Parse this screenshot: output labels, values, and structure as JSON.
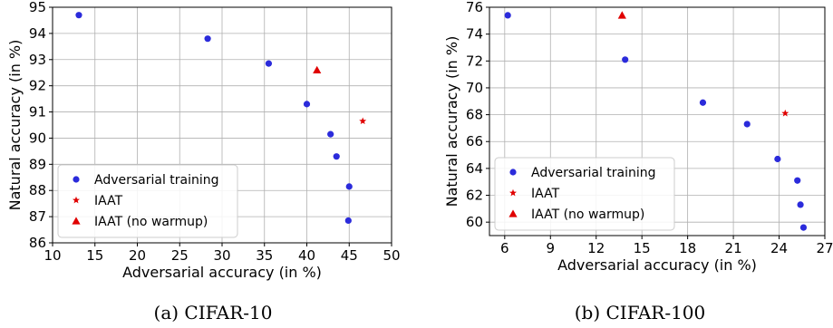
{
  "figure": {
    "captions": [
      "(a) CIFAR-10",
      "(b) CIFAR-100"
    ]
  },
  "legend_labels": [
    "Adversarial training",
    "IAAT",
    "IAAT (no warmup)"
  ],
  "colors": {
    "adversarial": "#2b2bdb",
    "iaat": "#e00000"
  },
  "chart_data": [
    {
      "type": "scatter",
      "title": "",
      "xlabel": "Adversarial accuracy (in %)",
      "ylabel": "Natural accuracy (in %)",
      "xlim": [
        10,
        50
      ],
      "ylim": [
        86,
        95
      ],
      "xticks": [
        10,
        15,
        20,
        25,
        30,
        35,
        40,
        45,
        50
      ],
      "yticks": [
        86,
        87,
        88,
        89,
        90,
        91,
        92,
        93,
        94,
        95
      ],
      "grid": true,
      "legend_position": "lower-left",
      "series": [
        {
          "name": "Adversarial training",
          "marker": "circle",
          "points": [
            [
              13.1,
              94.7
            ],
            [
              28.3,
              93.8
            ],
            [
              35.5,
              92.85
            ],
            [
              40.0,
              91.3
            ],
            [
              42.8,
              90.15
            ],
            [
              43.5,
              89.3
            ],
            [
              45.0,
              88.15
            ],
            [
              44.9,
              86.85
            ]
          ]
        },
        {
          "name": "IAAT",
          "marker": "star",
          "points": [
            [
              46.6,
              90.65
            ]
          ]
        },
        {
          "name": "IAAT (no warmup)",
          "marker": "triangle",
          "points": [
            [
              41.2,
              92.6
            ]
          ]
        }
      ]
    },
    {
      "type": "scatter",
      "title": "",
      "xlabel": "Adversarial accuracy (in %)",
      "ylabel": "Natural accuracy (in %)",
      "xlim": [
        5,
        27
      ],
      "ylim": [
        59,
        76
      ],
      "xticks": [
        6,
        9,
        12,
        15,
        18,
        21,
        24,
        27
      ],
      "yticks": [
        60,
        62,
        64,
        66,
        68,
        70,
        72,
        74,
        76
      ],
      "grid": true,
      "legend_position": "lower-left",
      "series": [
        {
          "name": "Adversarial training",
          "marker": "circle",
          "points": [
            [
              6.2,
              75.4
            ],
            [
              13.9,
              72.1
            ],
            [
              19.0,
              68.9
            ],
            [
              21.9,
              67.3
            ],
            [
              23.9,
              64.7
            ],
            [
              25.2,
              63.1
            ],
            [
              25.4,
              61.3
            ],
            [
              25.6,
              59.6
            ]
          ]
        },
        {
          "name": "IAAT",
          "marker": "star",
          "points": [
            [
              24.4,
              68.1
            ]
          ]
        },
        {
          "name": "IAAT (no warmup)",
          "marker": "triangle",
          "points": [
            [
              13.7,
              75.4
            ]
          ]
        }
      ]
    }
  ]
}
